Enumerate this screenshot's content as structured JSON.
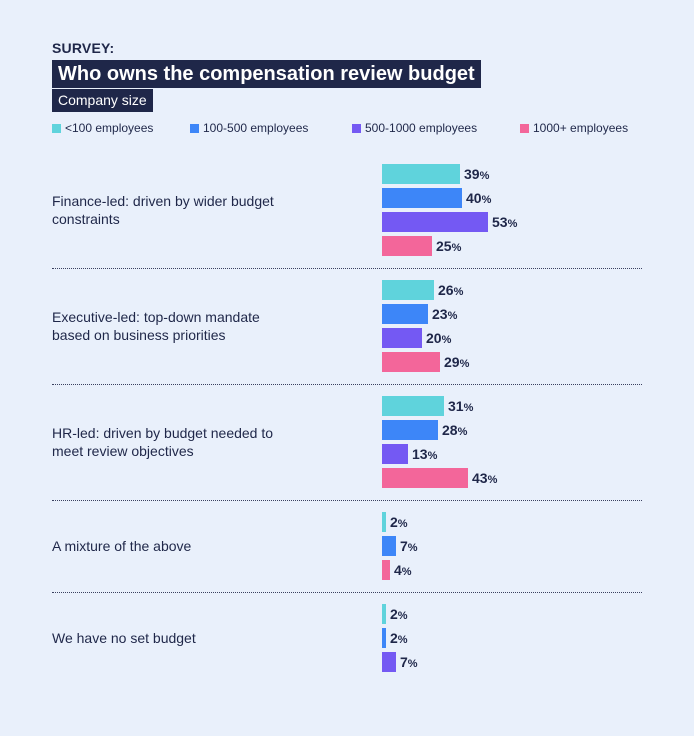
{
  "header": {
    "eyebrow": "SURVEY:",
    "title": "Who owns the compensation review budget",
    "subtitle": "Company size"
  },
  "chart_data": {
    "type": "bar",
    "orientation": "horizontal",
    "title": "Who owns the compensation review budget",
    "subtitle": "Company size",
    "value_suffix": "%",
    "legend_placement": "top",
    "categories": [
      "Finance-led: driven by wider budget constraints",
      "Executive-led: top-down mandate based on business priorities",
      "HR-led: driven by budget needed to meet review objectives",
      "A mixture of the above",
      "We have no set budget"
    ],
    "category_lines": [
      [
        "Finance-led: driven by wider budget",
        "constraints"
      ],
      [
        "Executive-led: top-down mandate",
        "based on business priorities"
      ],
      [
        "HR-led: driven by budget needed to",
        "meet review objectives"
      ],
      [
        "A mixture of the above"
      ],
      [
        "We have no set budget"
      ]
    ],
    "series": [
      {
        "name": "<100 employees",
        "color": "#5fd3dc",
        "values": [
          39,
          26,
          31,
          2,
          2
        ]
      },
      {
        "name": "100-500 employees",
        "color": "#3d86f8",
        "values": [
          40,
          23,
          28,
          7,
          2
        ]
      },
      {
        "name": "500-1000 employees",
        "color": "#7459f3",
        "values": [
          53,
          20,
          13,
          null,
          7
        ]
      },
      {
        "name": "1000+ employees",
        "color": "#f3669a",
        "values": [
          25,
          29,
          43,
          4,
          null
        ]
      }
    ],
    "grid": false
  }
}
